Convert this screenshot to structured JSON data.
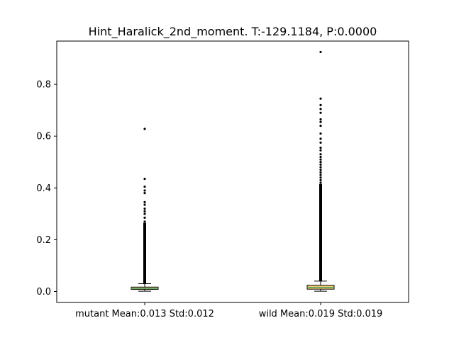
{
  "chart_data": {
    "type": "box",
    "title": "Hint_Haralick_2nd_moment. T:-129.1184, P:0.0000",
    "xlabel": "",
    "ylabel": "",
    "ylim": [
      -0.045,
      0.97
    ],
    "yticks": [
      "0.0",
      "0.2",
      "0.4",
      "0.6",
      "0.8"
    ],
    "yticks_values": [
      0.0,
      0.2,
      0.4,
      0.6,
      0.8
    ],
    "categories": [
      "mutant Mean:0.013 Std:0.012",
      "wild Mean:0.019 Std:0.019"
    ],
    "series": [
      {
        "name": "mutant",
        "q1": 0.008,
        "median": 0.012,
        "q3": 0.017,
        "whisker_low": 0.001,
        "whisker_high": 0.03,
        "flier_band": [
          0.03,
          0.265
        ],
        "outliers": [
          0.27,
          0.285,
          0.3,
          0.31,
          0.32,
          0.335,
          0.345,
          0.38,
          0.39,
          0.405,
          0.435,
          0.628
        ]
      },
      {
        "name": "wild",
        "q1": 0.009,
        "median": 0.016,
        "q3": 0.024,
        "whisker_low": 0.001,
        "whisker_high": 0.04,
        "flier_band": [
          0.04,
          0.415
        ],
        "outliers": [
          0.42,
          0.43,
          0.44,
          0.45,
          0.46,
          0.47,
          0.48,
          0.49,
          0.5,
          0.51,
          0.52,
          0.53,
          0.545,
          0.555,
          0.575,
          0.59,
          0.61,
          0.64,
          0.655,
          0.665,
          0.69,
          0.705,
          0.72,
          0.745,
          0.925
        ]
      }
    ],
    "colors": {
      "box_fill": "#f2c874",
      "median": "#3a9e5a",
      "marks": "#000000"
    },
    "grid": false,
    "legend": "none"
  }
}
